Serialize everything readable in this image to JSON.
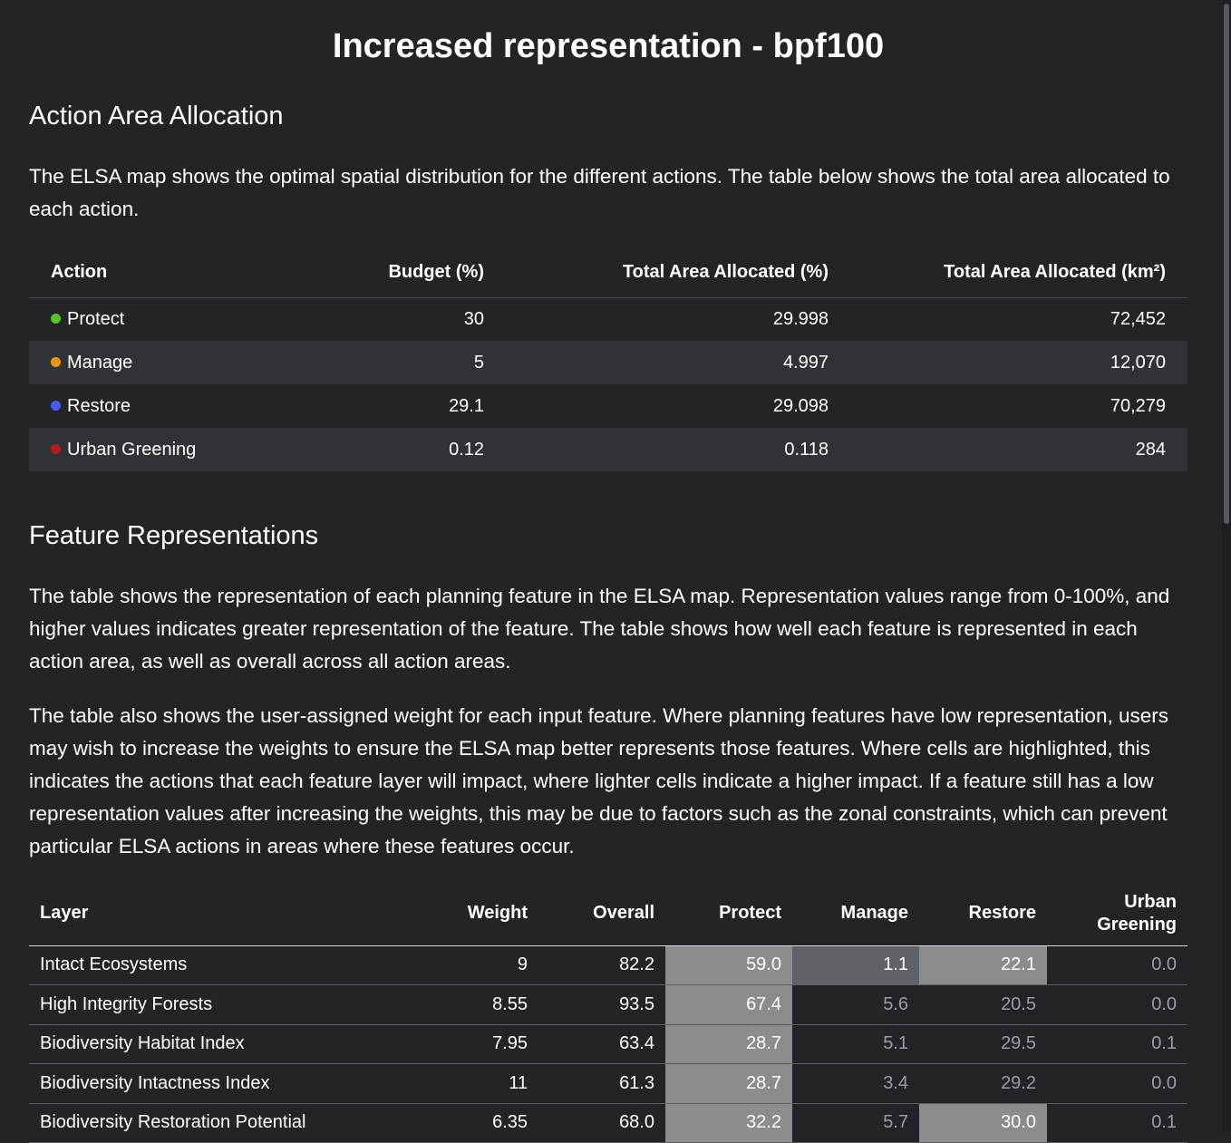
{
  "title": "Increased representation - bpf100",
  "allocation": {
    "heading": "Action Area Allocation",
    "description": "The ELSA map shows the optimal spatial distribution for the different actions. The table below shows the total area allocated to each action.",
    "columns": [
      "Action",
      "Budget (%)",
      "Total Area Allocated (%)",
      "Total Area Allocated (km²)"
    ],
    "rows": [
      {
        "action": "Protect",
        "color": "#5ec12b",
        "budget": "30",
        "area_pct": "29.998",
        "area_km2": "72,452"
      },
      {
        "action": "Manage",
        "color": "#e8951c",
        "budget": "5",
        "area_pct": "4.997",
        "area_km2": "12,070"
      },
      {
        "action": "Restore",
        "color": "#4a5cf0",
        "budget": "29.1",
        "area_pct": "29.098",
        "area_km2": "70,279"
      },
      {
        "action": "Urban Greening",
        "color": "#b01d22",
        "budget": "0.12",
        "area_pct": "0.118",
        "area_km2": "284"
      }
    ]
  },
  "features": {
    "heading": "Feature Representations",
    "description_1": "The table shows the representation of each planning feature in the ELSA map. Representation values range from 0-100%, and higher values indicates greater representation of the feature. The table shows how well each feature is represented in each action area, as well as overall across all action areas.",
    "description_2": "The table also shows the user-assigned weight for each input feature. Where planning features have low representation, users may wish to increase the weights to ensure the ELSA map better represents those features. Where cells are highlighted, this indicates the actions that each feature layer will impact, where lighter cells indicate a higher impact. If a feature still has a low representation values after increasing the weights, this may be due to factors such as the zonal constraints, which can prevent particular ELSA actions in areas where these features occur.",
    "columns": {
      "layer": "Layer",
      "weight": "Weight",
      "overall": "Overall",
      "protect": "Protect",
      "manage": "Manage",
      "restore": "Restore",
      "urban_line1": "Urban",
      "urban_line2": "Greening"
    },
    "rows": [
      {
        "layer": "Intact Ecosystems",
        "weight": "9",
        "overall": "82.2",
        "protect": "59.0",
        "manage": "1.1",
        "restore": "22.1",
        "urban": "0.0"
      },
      {
        "layer": "High Integrity Forests",
        "weight": "8.55",
        "overall": "93.5",
        "protect": "67.4",
        "manage": "5.6",
        "restore": "20.5",
        "urban": "0.0"
      },
      {
        "layer": "Biodiversity Habitat Index",
        "weight": "7.95",
        "overall": "63.4",
        "protect": "28.7",
        "manage": "5.1",
        "restore": "29.5",
        "urban": "0.1"
      },
      {
        "layer": "Biodiversity Intactness Index",
        "weight": "11",
        "overall": "61.3",
        "protect": "28.7",
        "manage": "3.4",
        "restore": "29.2",
        "urban": "0.0"
      },
      {
        "layer": "Biodiversity Restoration Potential",
        "weight": "6.35",
        "overall": "68.0",
        "protect": "32.2",
        "manage": "5.7",
        "restore": "30.0",
        "urban": "0.1"
      }
    ]
  }
}
